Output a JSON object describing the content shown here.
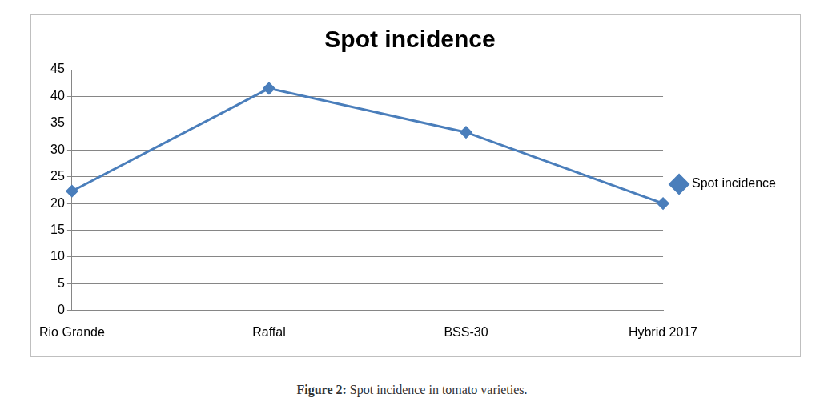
{
  "chart_data": {
    "type": "line",
    "title": "Spot incidence",
    "categories": [
      "Rio Grande",
      "Raffal",
      "BSS-30",
      "Hybrid 2017"
    ],
    "series": [
      {
        "name": "Spot incidence",
        "color": "#4a7ebb",
        "values": [
          22.3,
          41.5,
          33.3,
          20.0
        ],
        "marker": "diamond"
      }
    ],
    "ylim": [
      0,
      45
    ],
    "yticks": [
      0,
      5,
      10,
      15,
      20,
      25,
      30,
      35,
      40,
      45
    ],
    "grid": true,
    "legend": "right"
  },
  "caption": {
    "label": "Figure 2:",
    "text": "Spot incidence in tomato varieties."
  }
}
